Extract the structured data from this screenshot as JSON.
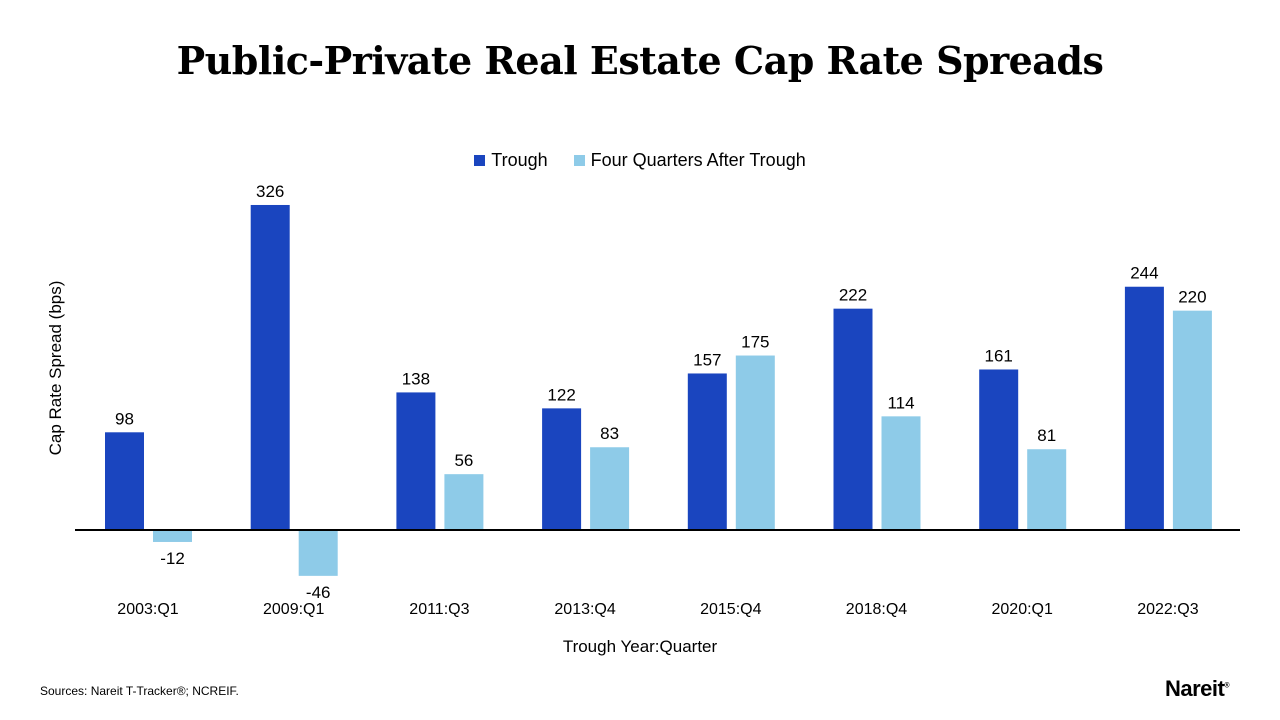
{
  "chart_data": {
    "type": "bar",
    "title": "Public-Private Real Estate Cap Rate Spreads",
    "xlabel": "Trough Year:Quarter",
    "ylabel": "Cap Rate Spread (bps)",
    "categories": [
      "2003:Q1",
      "2009:Q1",
      "2011:Q3",
      "2013:Q4",
      "2015:Q4",
      "2018:Q4",
      "2020:Q1",
      "2022:Q3"
    ],
    "series": [
      {
        "name": "Trough",
        "color": "#1a45bf",
        "values": [
          98,
          326,
          138,
          122,
          157,
          222,
          161,
          244
        ]
      },
      {
        "name": "Four Quarters After Trough",
        "color": "#8ecbe8",
        "values": [
          -12,
          -46,
          56,
          83,
          175,
          114,
          81,
          220
        ]
      }
    ],
    "ylim": [
      -50,
      330
    ],
    "grid": false,
    "legend": "top-center",
    "data_labels": true
  },
  "source": "Sources: Nareit T-Tracker®; NCREIF.",
  "logo": "Nareit"
}
